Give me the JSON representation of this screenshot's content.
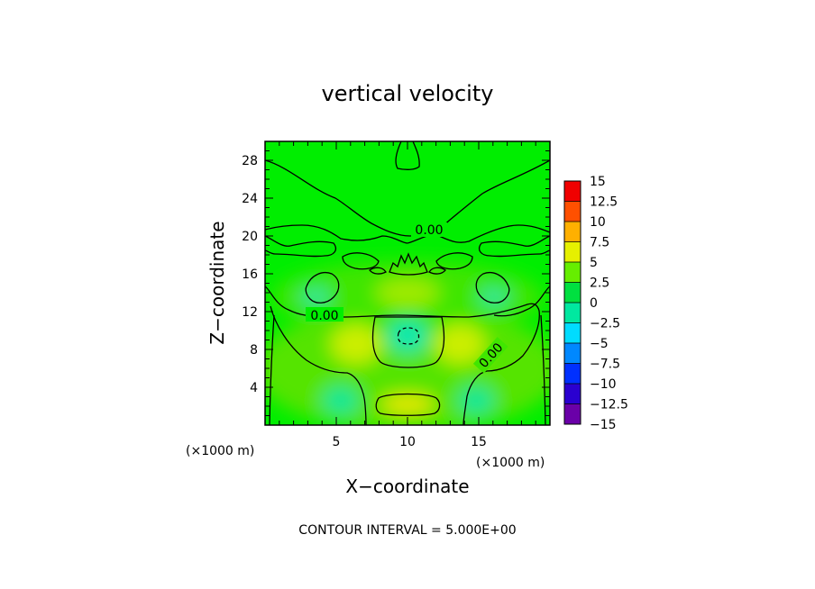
{
  "chart_data": {
    "type": "heatmap",
    "subtype": "filled-contour",
    "title": "vertical velocity",
    "xlabel": "X−coordinate",
    "ylabel": "Z−coordinate",
    "x_unit_label": "(×1000 m)",
    "y_unit_label": "(×1000 m)",
    "xlim": [
      0,
      20
    ],
    "ylim": [
      0,
      30
    ],
    "x_ticks": [
      5,
      10,
      15
    ],
    "y_ticks": [
      4,
      8,
      12,
      16,
      20,
      24,
      28
    ],
    "x_tick_labels": [
      "5",
      "10",
      "15"
    ],
    "y_tick_labels": [
      "4",
      "8",
      "12",
      "16",
      "20",
      "24",
      "28"
    ],
    "colorbar": {
      "levels": [
        -15,
        -12.5,
        -10,
        -7.5,
        -5,
        -2.5,
        0,
        2.5,
        5,
        7.5,
        10,
        12.5,
        15
      ],
      "labels": [
        "15",
        "12.5",
        "10",
        "7.5",
        "5",
        "2.5",
        "0",
        "−2.5",
        "−5",
        "−7.5",
        "−10",
        "−12.5",
        "−15"
      ],
      "colors": [
        "#6a00a8",
        "#2a00d0",
        "#0030ff",
        "#0088ff",
        "#00dcff",
        "#00e8a0",
        "#00e040",
        "#66ee00",
        "#e6f000",
        "#ffb000",
        "#ff5000",
        "#f00000",
        "#f08a8a"
      ]
    },
    "contour_labels": [
      "0.00",
      "0.00",
      "0.00"
    ],
    "features": [
      {
        "x": 10,
        "z": 2.5,
        "value": 4,
        "kind": "updraft max"
      },
      {
        "x": 10,
        "z": 9.5,
        "value": -5,
        "kind": "downdraft min"
      },
      {
        "x": 5,
        "z": 2.8,
        "value": -3,
        "kind": "weak downdraft"
      },
      {
        "x": 15,
        "z": 2.8,
        "value": -3,
        "kind": "weak downdraft"
      },
      {
        "x": 6.5,
        "z": 9,
        "value": 3,
        "kind": "weak updraft"
      },
      {
        "x": 13.5,
        "z": 9,
        "value": 3,
        "kind": "weak updraft"
      }
    ],
    "footer": "CONTOUR INTERVAL = 5.000E+00"
  }
}
